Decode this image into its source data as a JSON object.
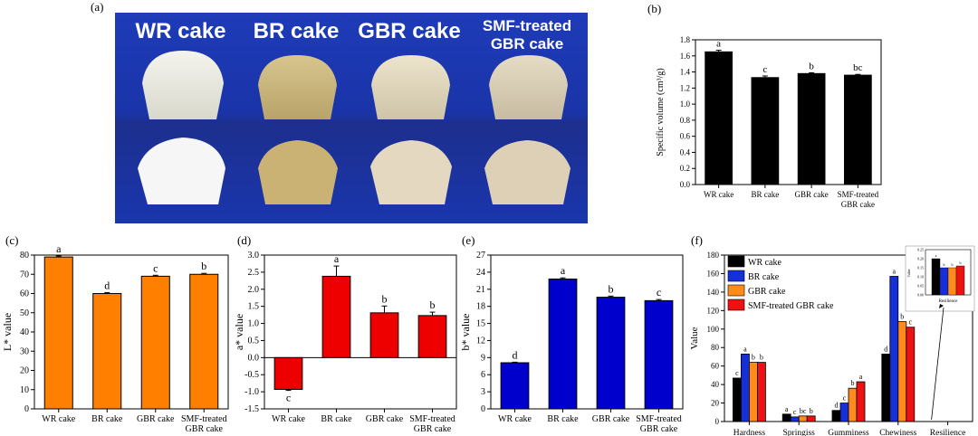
{
  "panel_labels": [
    "(a)",
    "(b)",
    "(c)",
    "(d)",
    "(e)",
    "(f)"
  ],
  "photo": {
    "labels": [
      "WR cake",
      "BR cake",
      "GBR cake",
      "SMF-treated GBR cake"
    ],
    "label_lines": [
      [
        "WR cake"
      ],
      [
        "BR cake"
      ],
      [
        "GBR cake"
      ],
      [
        "SMF-treated",
        "GBR cake"
      ]
    ]
  },
  "colors": {
    "orange": "#ff8000",
    "red": "#ee0000",
    "blue": "#0000cc",
    "black": "#000000",
    "wr": "#000000",
    "br": "#1530d8",
    "gbr": "#ff8c1a",
    "smf": "#ee1111"
  },
  "chart_data": [
    {
      "id": "b",
      "type": "bar",
      "categories": [
        [
          "WR cake"
        ],
        [
          "BR cake"
        ],
        [
          "GBR cake"
        ],
        [
          "SMF-treated",
          "GBR cake"
        ]
      ],
      "values": [
        1.65,
        1.33,
        1.38,
        1.36
      ],
      "errors": [
        0.02,
        0.02,
        0.01,
        0.01
      ],
      "letters": [
        "a",
        "c",
        "b",
        "bc"
      ],
      "ylabel": "Specific volume (cm³/g)",
      "ylim": [
        0,
        1.8
      ],
      "yticks": [
        "0.0",
        "0.2",
        "0.4",
        "0.6",
        "0.8",
        "1.0",
        "1.2",
        "1.4",
        "1.6",
        "1.8"
      ],
      "bar_color": "#000000"
    },
    {
      "id": "c",
      "type": "bar",
      "categories": [
        [
          "WR cake"
        ],
        [
          "BR cake"
        ],
        [
          "GBR cake"
        ],
        [
          "SMF-treated",
          "GBR cake"
        ]
      ],
      "values": [
        79,
        60,
        69,
        70
      ],
      "errors": [
        0.5,
        0.5,
        0.5,
        0.5
      ],
      "letters": [
        "a",
        "d",
        "c",
        "b"
      ],
      "ylabel": "L* value",
      "ylim": [
        0,
        80
      ],
      "yticks": [
        "0",
        "10",
        "20",
        "30",
        "40",
        "50",
        "60",
        "70",
        "80"
      ],
      "bar_color": "#ff8000"
    },
    {
      "id": "d",
      "type": "bar",
      "categories": [
        [
          "WR cake"
        ],
        [
          "BR cake"
        ],
        [
          "GBR cake"
        ],
        [
          "SMF-treated",
          "GBR cake"
        ]
      ],
      "values": [
        -0.93,
        2.38,
        1.31,
        1.23
      ],
      "errors": [
        0.03,
        0.3,
        0.2,
        0.1
      ],
      "letters": [
        "c",
        "a",
        "b",
        "b"
      ],
      "ylabel": "a* value",
      "ylim": [
        -1.5,
        3.0
      ],
      "yticks": [
        "-1.5",
        "-1.0",
        "-0.5",
        "0.0",
        "0.5",
        "1.0",
        "1.5",
        "2.0",
        "2.5",
        "3.0"
      ],
      "bar_color": "#ee0000"
    },
    {
      "id": "e",
      "type": "bar",
      "categories": [
        [
          "WR cake"
        ],
        [
          "BR cake"
        ],
        [
          "GBR cake"
        ],
        [
          "SMF-treated",
          "GBR cake"
        ]
      ],
      "values": [
        8.1,
        22.8,
        19.6,
        19.0
      ],
      "errors": [
        0.1,
        0.2,
        0.2,
        0.2
      ],
      "letters": [
        "d",
        "a",
        "b",
        "c"
      ],
      "ylabel": "b* value",
      "ylim": [
        0,
        27
      ],
      "yticks": [
        "0",
        "3",
        "6",
        "9",
        "12",
        "15",
        "18",
        "21",
        "24",
        "27"
      ],
      "bar_color": "#0000cc"
    },
    {
      "id": "f",
      "type": "bar",
      "categories": [
        "Hardness",
        "Springiss",
        "Gumminess",
        "Chewiness",
        "Resilience"
      ],
      "series": [
        {
          "name": "WR cake",
          "values": [
            47,
            8,
            12,
            73,
            0.2
          ],
          "letters": [
            "c",
            "a",
            "d",
            "d",
            "a"
          ]
        },
        {
          "name": "BR cake",
          "values": [
            73,
            5,
            20,
            157,
            0.15
          ],
          "letters": [
            "a",
            "c",
            "c",
            "a",
            "b"
          ]
        },
        {
          "name": "GBR cake",
          "values": [
            64,
            6,
            36,
            108,
            0.15
          ],
          "letters": [
            "b",
            "bc",
            "b",
            "b",
            "b"
          ]
        },
        {
          "name": "SMF-treated GBR cake",
          "values": [
            64,
            6,
            43,
            102,
            0.16
          ],
          "letters": [
            "b",
            "b",
            "a",
            "c",
            "b"
          ]
        }
      ],
      "ylabel": "Value",
      "ylim": [
        0,
        180
      ],
      "yticks": [
        "0",
        "20",
        "40",
        "60",
        "80",
        "100",
        "120",
        "140",
        "160",
        "180"
      ],
      "inset": {
        "xlabel": "Resilience",
        "ylabel": "Value",
        "yticks": [
          "0.00",
          "0.05",
          "0.10",
          "0.15",
          "0.20",
          "0.25"
        ]
      }
    }
  ]
}
